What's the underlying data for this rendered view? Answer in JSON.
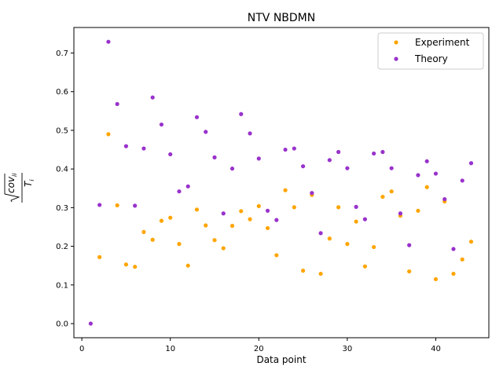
{
  "chart_data": {
    "type": "scatter",
    "title": "NTV NBDMN",
    "xlabel": "Data point",
    "ylabel_parts": {
      "num": "cov",
      "sub": "ii",
      "den": "T",
      "den_sub": "i"
    },
    "xlim": [
      -0.9,
      46.0
    ],
    "ylim": [
      -0.0365,
      0.766
    ],
    "xticks": [
      0,
      10,
      20,
      30,
      40
    ],
    "yticks": [
      0.0,
      0.1,
      0.2,
      0.3,
      0.4,
      0.5,
      0.6,
      0.7
    ],
    "ytick_labels": [
      "0.0",
      "0.1",
      "0.2",
      "0.3",
      "0.4",
      "0.5",
      "0.6",
      "0.7"
    ],
    "legend_position": "top-right",
    "x": [
      1,
      2,
      3,
      4,
      5,
      6,
      7,
      8,
      9,
      10,
      11,
      12,
      13,
      14,
      15,
      16,
      17,
      18,
      19,
      20,
      21,
      22,
      23,
      24,
      25,
      26,
      27,
      28,
      29,
      30,
      31,
      32,
      33,
      34,
      35,
      36,
      37,
      38,
      39,
      40,
      41,
      42,
      43,
      44
    ],
    "series": [
      {
        "name": "Experiment",
        "color": "#ffa500",
        "values": [
          null,
          0.172,
          0.49,
          0.306,
          0.153,
          0.147,
          0.237,
          0.217,
          0.266,
          0.274,
          0.206,
          0.15,
          0.295,
          0.254,
          0.216,
          0.195,
          0.253,
          0.291,
          0.27,
          0.304,
          0.247,
          0.177,
          0.345,
          0.301,
          0.137,
          0.333,
          0.129,
          0.22,
          0.301,
          0.206,
          0.264,
          0.148,
          0.198,
          0.328,
          0.342,
          0.279,
          0.135,
          0.292,
          0.353,
          0.115,
          0.316,
          0.129,
          0.166,
          0.212
        ]
      },
      {
        "name": "Theory",
        "color": "#9932cc",
        "values": [
          0.0,
          0.307,
          0.729,
          0.568,
          0.459,
          0.305,
          0.453,
          0.585,
          0.515,
          0.438,
          0.342,
          0.355,
          0.534,
          0.496,
          0.43,
          0.285,
          0.401,
          0.542,
          0.492,
          0.427,
          0.292,
          0.268,
          0.45,
          0.453,
          0.407,
          0.338,
          0.234,
          0.423,
          0.444,
          0.402,
          0.302,
          0.27,
          0.44,
          0.444,
          0.402,
          0.285,
          0.203,
          0.384,
          0.42,
          0.388,
          0.322,
          0.193,
          0.37,
          0.415
        ]
      }
    ]
  }
}
